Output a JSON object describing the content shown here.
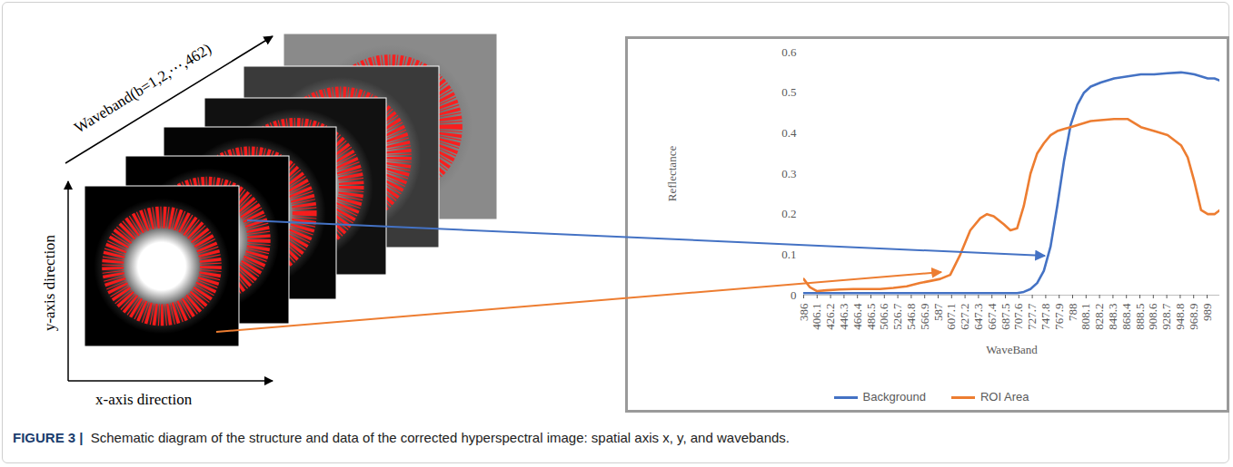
{
  "diagram": {
    "waveband_axis": "Waveband(b=1,2,⋯,462)",
    "y_axis": "y-axis direction",
    "x_axis": "x-axis direction"
  },
  "chart_data": {
    "type": "line",
    "xlabel": "WaveBand",
    "ylabel": "Reflectance",
    "x": [
      386,
      395,
      406,
      420,
      440,
      460,
      480,
      500,
      520,
      540,
      560,
      575,
      590,
      605,
      620,
      635,
      650,
      660,
      670,
      685,
      695,
      705,
      715,
      725,
      735,
      745,
      755,
      765,
      775,
      785,
      795,
      805,
      815,
      830,
      850,
      870,
      890,
      910,
      930,
      950,
      960,
      970,
      980,
      990,
      1000,
      1008
    ],
    "series": [
      {
        "name": "Background",
        "color": "#4472c4",
        "values": [
          0.005,
          0.005,
          0.005,
          0.005,
          0.005,
          0.005,
          0.005,
          0.005,
          0.005,
          0.005,
          0.005,
          0.005,
          0.005,
          0.005,
          0.005,
          0.005,
          0.005,
          0.005,
          0.005,
          0.005,
          0.005,
          0.005,
          0.008,
          0.015,
          0.03,
          0.06,
          0.12,
          0.22,
          0.33,
          0.42,
          0.47,
          0.5,
          0.515,
          0.525,
          0.535,
          0.54,
          0.545,
          0.545,
          0.548,
          0.55,
          0.548,
          0.545,
          0.54,
          0.535,
          0.535,
          0.53
        ]
      },
      {
        "name": "ROI Area",
        "color": "#ed7d31",
        "values": [
          0.04,
          0.02,
          0.01,
          0.012,
          0.014,
          0.015,
          0.015,
          0.015,
          0.018,
          0.022,
          0.03,
          0.035,
          0.04,
          0.05,
          0.1,
          0.16,
          0.19,
          0.2,
          0.195,
          0.175,
          0.16,
          0.165,
          0.22,
          0.3,
          0.35,
          0.375,
          0.395,
          0.405,
          0.41,
          0.415,
          0.42,
          0.425,
          0.43,
          0.432,
          0.435,
          0.435,
          0.415,
          0.405,
          0.395,
          0.37,
          0.34,
          0.28,
          0.21,
          0.2,
          0.2,
          0.21
        ]
      }
    ],
    "xlim": [
      386,
      1008
    ],
    "xticks": [
      386,
      406.1,
      426.2,
      446.3,
      466.4,
      486.5,
      506.6,
      526.7,
      546.8,
      566.9,
      587,
      607.1,
      627.2,
      647.3,
      667.4,
      687.5,
      707.6,
      727.7,
      747.8,
      767.9,
      788,
      808.1,
      828.2,
      848.3,
      868.4,
      888.5,
      908.6,
      928.7,
      948.8,
      968.9,
      989
    ],
    "ylim": [
      0,
      0.6
    ],
    "yticks": [
      0,
      0.1,
      0.2,
      0.3,
      0.4,
      0.5,
      0.6
    ],
    "grid": false,
    "legend": "bottom"
  },
  "caption": {
    "label": "FIGURE 3 |",
    "text": "Schematic diagram of the structure and data of the corrected hyperspectral image: spatial axis x, y, and wavebands."
  }
}
